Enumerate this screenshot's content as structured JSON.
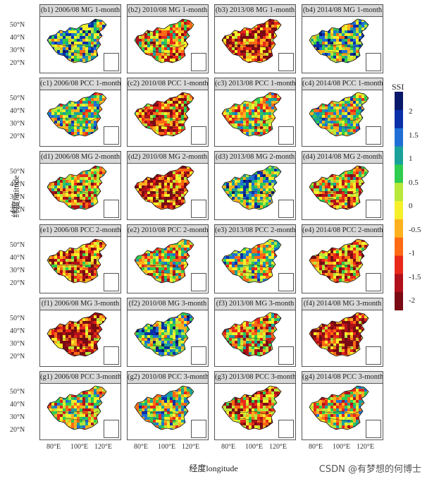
{
  "panels": [
    [
      "(b1) 2006/08 MG 1-month",
      "(b2) 2010/08 MG 1-month",
      "(b3) 2013/08 MG 1-month",
      "(b4) 2014/08 MG 1-month"
    ],
    [
      "(c1) 2006/08 PCC 1-month",
      "(c2) 2010/08 PCC 1-month",
      "(c3) 2013/08 PCC 1-month",
      "(c4) 2014/08 PCC 1-month"
    ],
    [
      "(d1) 2006/08 MG 2-month",
      "(d2) 2010/08 MG 2-month",
      "(d3) 2013/08 MG 2-month",
      "(d4) 2014/08 MG 2-month"
    ],
    [
      "(e1) 2006/08 PCC 2-month",
      "(e2) 2010/08 PCC 2-month",
      "(e3) 2013/08 PCC 2-month",
      "(e4) 2014/08 PCC 2-month"
    ],
    [
      "(f1) 2006/08 MG 3-month",
      "(f2) 2010/08 MG 3-month",
      "(f3) 2013/08 MG 3-month",
      "(f4) 2014/08 MG 3-month"
    ],
    [
      "(g1) 2006/08 PCC 3-month",
      "(g2) 2010/08 PCC 3-month",
      "(g3) 2013/08 PCC 3-month",
      "(g4) 2014/08 PCC 3-month"
    ]
  ],
  "y_ticks": [
    "50°N",
    "40°N",
    "30°N",
    "20°N"
  ],
  "x_ticks": [
    "80°E",
    "100°E",
    "120°E"
  ],
  "x_axis_title": "经度longitude",
  "y_axis_title": "纬度latitude",
  "legend": {
    "title": "SSI",
    "labels": [
      "2",
      "1.5",
      "1",
      "0.5",
      "0",
      "-0.5",
      "-1",
      "-1.5",
      "-2"
    ],
    "colors": [
      "#08196b",
      "#0a2fa8",
      "#1f6fd6",
      "#1aa29a",
      "#2ecc4f",
      "#b8e83a",
      "#f5f02a",
      "#ffb01e",
      "#ff6a14",
      "#e8281a",
      "#b0101a",
      "#7a0a14"
    ]
  },
  "watermark": "CSDN @有梦想的何博士"
}
